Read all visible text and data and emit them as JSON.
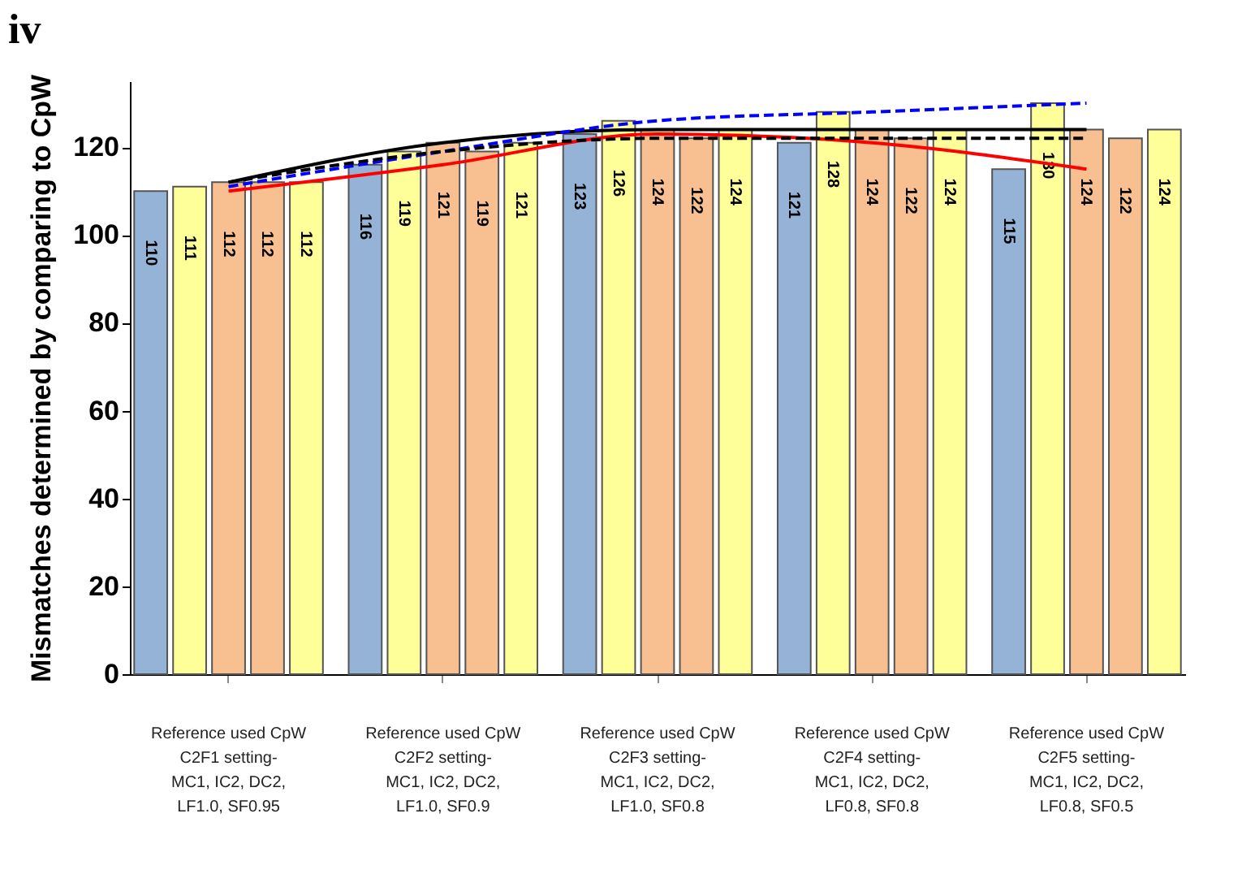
{
  "chart_data": {
    "type": "bar",
    "title": "iv",
    "ylabel": "Mismatches determined by comparing to CpW",
    "categories": [
      "Reference used CpW\nC2F1 setting-\nMC1, IC2, DC2,\nLF1.0, SF0.95",
      "Reference used CpW\nC2F2 setting-\nMC1, IC2, DC2,\nLF1.0, SF0.9",
      "Reference used CpW\nC2F3 setting-\nMC1, IC2, DC2,\nLF1.0, SF0.8",
      "Reference used CpW\nC2F4 setting-\nMC1, IC2, DC2,\nLF0.8, SF0.8",
      "Reference used CpW\nC2F5 setting-\nMC1, IC2, DC2,\nLF0.8, SF0.5"
    ],
    "series": [
      {
        "color": "#95b3d7",
        "values": [
          110,
          116,
          123,
          121,
          115
        ],
        "value_labels": [
          "110",
          "116",
          "123",
          "121",
          "115"
        ]
      },
      {
        "color": "#ffff99",
        "values": [
          111,
          119,
          126,
          128,
          130
        ],
        "value_labels": [
          "111",
          "119",
          "126",
          "128",
          "130"
        ]
      },
      {
        "color": "#f8c090",
        "values": [
          112,
          121,
          124,
          124,
          124
        ],
        "value_labels": [
          "112",
          "121",
          "124",
          "124",
          "124"
        ]
      },
      {
        "color": "#f8c090",
        "values": [
          112,
          119,
          122,
          122,
          122
        ],
        "value_labels": [
          "112",
          "119",
          "122",
          "122",
          "122"
        ]
      },
      {
        "color": "#ffff99",
        "values": [
          112,
          121,
          124,
          124,
          124
        ],
        "value_labels": [
          "112",
          "121",
          "124",
          "124",
          "124"
        ]
      },
      {
        "type": "line",
        "color": "#ff0000",
        "line_style": "solid",
        "values": [
          110,
          116,
          123,
          121,
          115
        ]
      },
      {
        "type": "line",
        "color": "#000000",
        "line_style": "solid",
        "values": [
          112,
          121,
          124,
          124,
          124
        ]
      },
      {
        "type": "line",
        "color": "#0000ff",
        "line_style": "dashed",
        "values": [
          111,
          119,
          126,
          128,
          130
        ]
      },
      {
        "type": "line",
        "color": "#000000",
        "line_style": "dashed",
        "values": [
          112,
          119,
          122,
          122,
          122
        ]
      }
    ],
    "ylim": [
      0,
      135
    ],
    "yticks": [
      0,
      20,
      40,
      60,
      80,
      100,
      120
    ],
    "grid": false
  }
}
